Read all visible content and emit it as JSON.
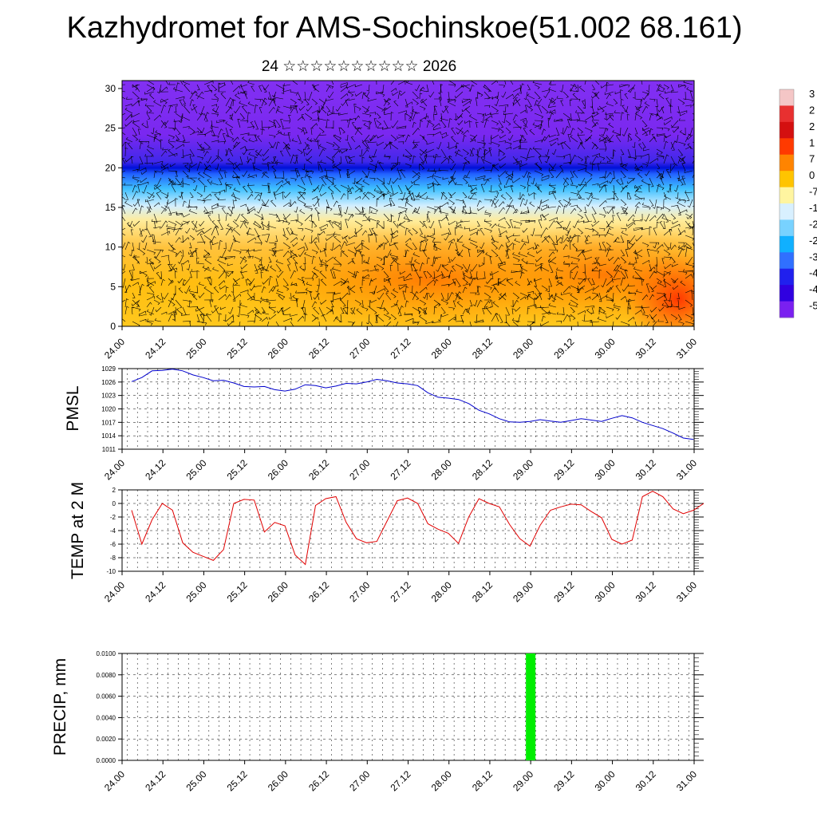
{
  "title": "Kazhydromet for AMS-Sochinskoe(51.002 68.161)",
  "subtitle": "24 ☆☆☆☆☆☆☆☆☆☆ 2026",
  "colors": {
    "pmsl_line": "#0000cc",
    "temp_line": "#e00000",
    "precip_bar": "#00ee00",
    "wind_barb": "#000000"
  },
  "chart_data": [
    {
      "type": "heatmap",
      "name": "vertical-section",
      "x_tick_labels": [
        "24.00",
        "24.12",
        "25.00",
        "25.12",
        "26.00",
        "26.12",
        "27.00",
        "27.12",
        "28.00",
        "28.12",
        "29.00",
        "29.12",
        "30.00",
        "30.12",
        "31.00"
      ],
      "y_ticks": [
        0,
        5,
        10,
        15,
        20,
        25,
        30
      ],
      "ylim": [
        0,
        31
      ],
      "colorbar_labels": [
        "3",
        "2",
        "2",
        "1",
        "7",
        "0",
        "-7",
        "-1",
        "-2",
        "-2",
        "-3",
        "-4",
        "-4",
        "-5"
      ],
      "colorbar_colors": [
        "#f4c6c6",
        "#e83030",
        "#d41010",
        "#ff3a00",
        "#ff8400",
        "#ffc400",
        "#fff5a0",
        "#d8f0ff",
        "#78d2ff",
        "#10b0ff",
        "#3070ff",
        "#2020ee",
        "#3000e0",
        "#7a20f0"
      ]
    },
    {
      "type": "line",
      "name": "PMSL",
      "ylabel": "PMSL",
      "ylim": [
        1011,
        1029
      ],
      "y_ticks": [
        1011,
        1014,
        1017,
        1020,
        1023,
        1026,
        1029
      ],
      "x_tick_labels": [
        "24.00",
        "24.12",
        "25.00",
        "25.12",
        "26.00",
        "26.12",
        "27.00",
        "27.12",
        "28.00",
        "28.12",
        "29.00",
        "29.12",
        "30.00",
        "30.12",
        "31.00"
      ],
      "x_step_hours": 3,
      "values": [
        1026.1,
        1027.0,
        1028.5,
        1028.6,
        1028.9,
        1028.5,
        1027.6,
        1027.0,
        1026.3,
        1026.4,
        1025.8,
        1025.0,
        1024.9,
        1025.0,
        1024.3,
        1024.0,
        1024.4,
        1025.4,
        1025.2,
        1024.7,
        1025.1,
        1025.7,
        1025.6,
        1026.0,
        1026.6,
        1026.3,
        1025.8,
        1025.6,
        1025.2,
        1023.6,
        1022.6,
        1022.4,
        1022.1,
        1021.2,
        1019.7,
        1018.9,
        1017.8,
        1017.1,
        1017.0,
        1017.2,
        1017.6,
        1017.3,
        1017.0,
        1017.4,
        1017.8,
        1017.5,
        1017.2,
        1017.9,
        1018.5,
        1018.0,
        1017.0,
        1016.3,
        1015.6,
        1014.6,
        1013.5,
        1013.2
      ]
    },
    {
      "type": "line",
      "name": "TEMP at 2 M",
      "ylabel": "TEMP at 2 M",
      "ylim": [
        -10,
        2
      ],
      "y_ticks": [
        -10,
        -8,
        -6,
        -4,
        -2,
        0,
        2
      ],
      "x_tick_labels": [
        "24.00",
        "24.12",
        "25.00",
        "25.12",
        "26.00",
        "26.12",
        "27.00",
        "27.12",
        "28.00",
        "28.12",
        "29.00",
        "29.12",
        "30.00",
        "30.12",
        "31.00"
      ],
      "x_step_hours": 3,
      "values": [
        -1.0,
        -6.0,
        -2.4,
        0.0,
        -1.0,
        -5.8,
        -7.2,
        -7.8,
        -8.4,
        -6.8,
        0.0,
        0.6,
        0.5,
        -4.2,
        -2.8,
        -3.3,
        -7.6,
        -9.0,
        -0.3,
        0.7,
        1.0,
        -2.8,
        -5.2,
        -5.8,
        -5.6,
        -2.6,
        0.4,
        0.8,
        0.0,
        -3.0,
        -3.8,
        -4.4,
        -5.9,
        -2.0,
        0.7,
        0.0,
        -0.5,
        -3.1,
        -5.2,
        -6.3,
        -3.2,
        -1.0,
        -0.5,
        -0.1,
        -0.2,
        -1.2,
        -2.1,
        -5.3,
        -6.0,
        -5.4,
        1.0,
        1.8,
        1.0,
        -0.8,
        -1.5,
        -1.0,
        0.0
      ]
    },
    {
      "type": "bar",
      "name": "PRECIP",
      "ylabel": "PRECIP, mm",
      "ylim": [
        0,
        0.01
      ],
      "y_tick_labels": [
        "0.0000",
        "0.0020",
        "0.0040",
        "0.0060",
        "0.0080",
        "0.0100"
      ],
      "x_tick_labels": [
        "24.00",
        "24.12",
        "25.00",
        "25.12",
        "26.00",
        "26.12",
        "27.00",
        "27.12",
        "28.00",
        "28.12",
        "29.00",
        "29.12",
        "30.00",
        "30.12",
        "31.00"
      ],
      "bars": [
        {
          "time": "29.00",
          "value": 0.01
        }
      ]
    }
  ]
}
